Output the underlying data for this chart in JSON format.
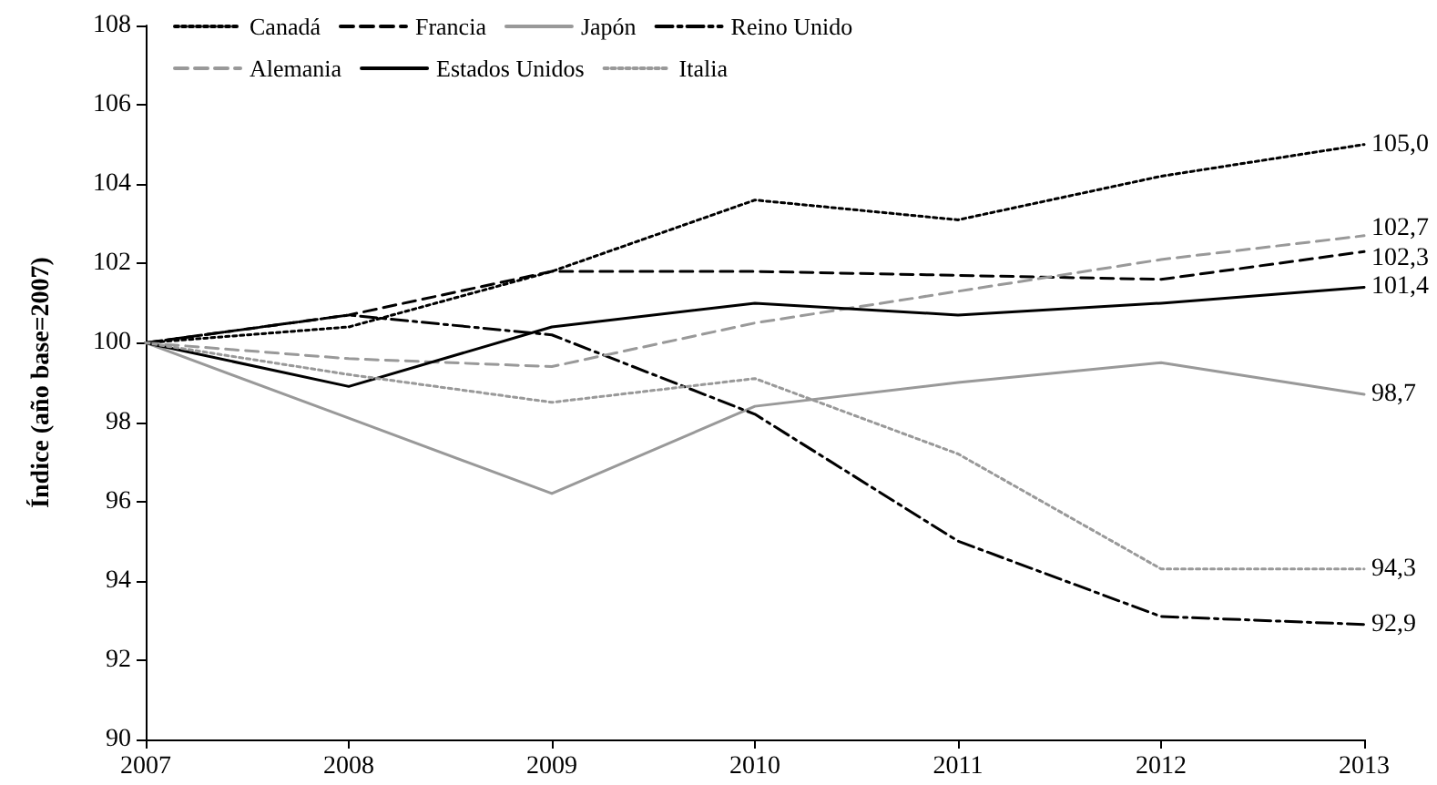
{
  "chart_data": {
    "type": "line",
    "ylabel": "Índice (año base=2007)",
    "categories": [
      "2007",
      "2008",
      "2009",
      "2010",
      "2011",
      "2012",
      "2013"
    ],
    "ylim": [
      90,
      108
    ],
    "yticks": [
      90,
      92,
      94,
      96,
      98,
      100,
      102,
      104,
      106,
      108
    ],
    "grid": false,
    "legend": "top left",
    "marker": "none",
    "series": [
      {
        "name": "Canadá",
        "color": "#000000",
        "line_style": "dotted",
        "values": [
          100,
          100.4,
          101.8,
          103.6,
          103.1,
          104.2,
          105.0
        ],
        "value_labels": [
          null,
          null,
          null,
          null,
          null,
          null,
          "105,0"
        ]
      },
      {
        "name": "Francia",
        "color": "#000000",
        "line_style": "dashed",
        "values": [
          100,
          100.7,
          101.8,
          101.8,
          101.7,
          101.6,
          102.3
        ],
        "value_labels": [
          null,
          null,
          null,
          null,
          null,
          null,
          "102,3"
        ]
      },
      {
        "name": "Japón",
        "color": "#999999",
        "line_style": "solid",
        "values": [
          100,
          98.1,
          96.2,
          98.4,
          99.0,
          99.5,
          98.7
        ],
        "value_labels": [
          null,
          null,
          null,
          null,
          null,
          null,
          "98,7"
        ]
      },
      {
        "name": "Reino Unido",
        "color": "#000000",
        "line_style": "dashdot",
        "values": [
          100,
          100.7,
          100.2,
          98.2,
          95.0,
          93.1,
          92.9
        ],
        "value_labels": [
          null,
          null,
          null,
          null,
          null,
          null,
          "92,9"
        ]
      },
      {
        "name": "Alemania",
        "color": "#999999",
        "line_style": "dashed",
        "values": [
          100,
          99.6,
          99.4,
          100.5,
          101.3,
          102.1,
          102.7
        ],
        "value_labels": [
          null,
          null,
          null,
          null,
          null,
          null,
          "102,7"
        ]
      },
      {
        "name": "Estados Unidos",
        "color": "#000000",
        "line_style": "solid",
        "values": [
          100,
          98.9,
          100.4,
          101.0,
          100.7,
          101.0,
          101.4
        ],
        "value_labels": [
          null,
          null,
          null,
          null,
          null,
          null,
          "101,4"
        ]
      },
      {
        "name": "Italia",
        "color": "#999999",
        "line_style": "dotted",
        "values": [
          100,
          99.2,
          98.5,
          99.1,
          97.2,
          94.3,
          94.3
        ],
        "value_labels": [
          null,
          null,
          null,
          null,
          null,
          null,
          "94,3"
        ]
      }
    ]
  }
}
